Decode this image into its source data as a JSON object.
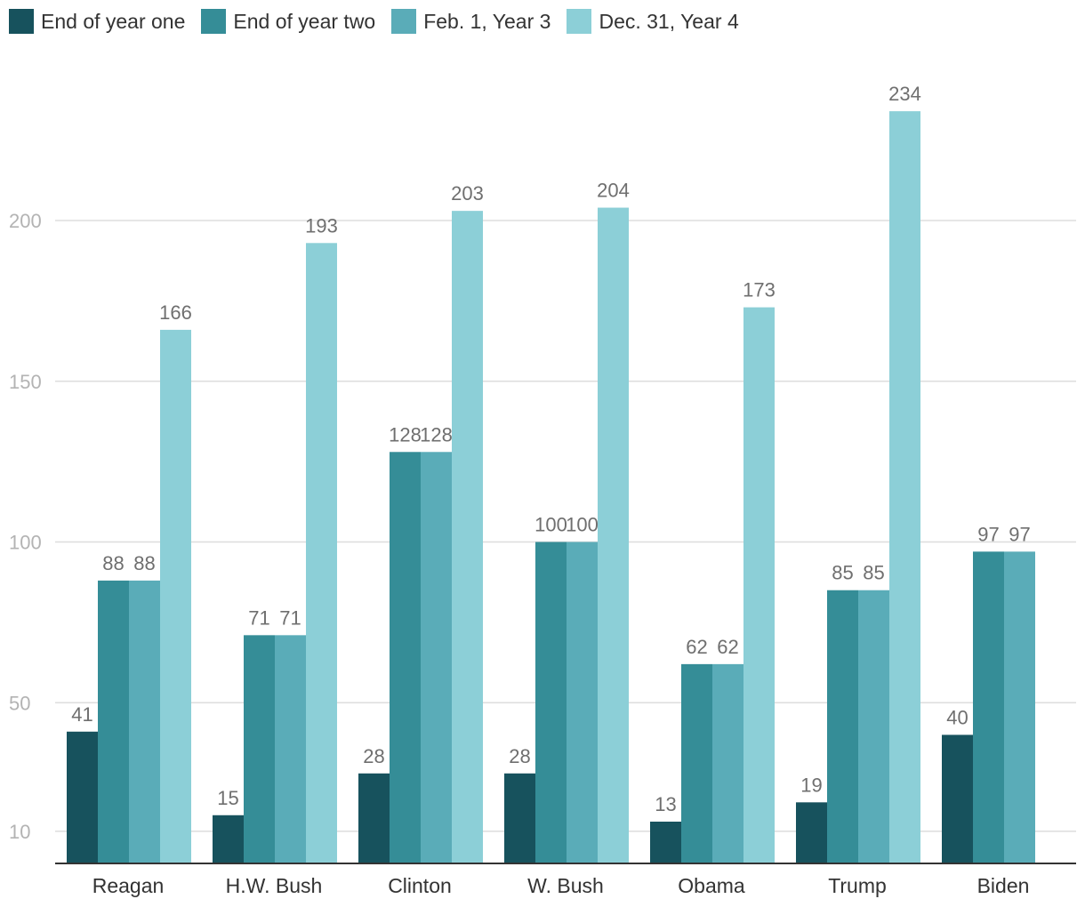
{
  "chart_data": {
    "type": "bar",
    "title": "",
    "xlabel": "",
    "ylabel": "",
    "categories": [
      "Reagan",
      "H.W. Bush",
      "Clinton",
      "W. Bush",
      "Obama",
      "Trump",
      "Biden"
    ],
    "series": [
      {
        "name": "End of year one",
        "color": "#17525d",
        "values": [
          41,
          15,
          28,
          28,
          13,
          19,
          40
        ]
      },
      {
        "name": "End of year two",
        "color": "#358d97",
        "values": [
          88,
          71,
          128,
          100,
          62,
          85,
          97
        ]
      },
      {
        "name": "Feb. 1, Year 3",
        "color": "#5aacb8",
        "values": [
          88,
          71,
          128,
          100,
          62,
          85,
          97
        ]
      },
      {
        "name": "Dec. 31, Year 4",
        "color": "#8ccfd7",
        "values": [
          166,
          193,
          203,
          204,
          173,
          234,
          null
        ]
      }
    ],
    "yticks": [
      "10",
      "50",
      "100",
      "150",
      "200"
    ],
    "ytick_values": [
      10,
      50,
      100,
      150,
      200
    ],
    "ylim": [
      0,
      250
    ],
    "grid": true,
    "legend_position": "top-left"
  }
}
